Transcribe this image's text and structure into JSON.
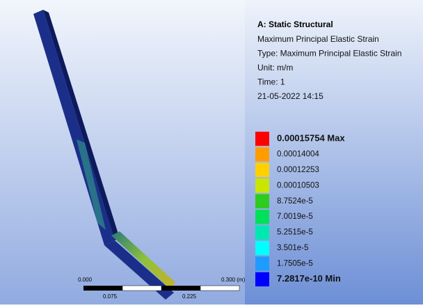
{
  "header": {
    "title": "A: Static Structural",
    "lines": [
      "Maximum Principal Elastic Strain",
      "Type: Maximum Principal Elastic Strain",
      "Unit: m/m",
      "Time: 1",
      "21-05-2022 14:15"
    ]
  },
  "legend": {
    "entries": [
      {
        "label": "0.00015754 Max",
        "color": "#ff0000"
      },
      {
        "label": "0.00014004",
        "color": "#ff9d00"
      },
      {
        "label": "0.00012253",
        "color": "#ffd000"
      },
      {
        "label": "0.00010503",
        "color": "#c8e600"
      },
      {
        "label": "8.7524e-5",
        "color": "#2ecc1e"
      },
      {
        "label": "7.0019e-5",
        "color": "#00e05a"
      },
      {
        "label": "5.2515e-5",
        "color": "#00e8b0"
      },
      {
        "label": "3.501e-5",
        "color": "#00ffff"
      },
      {
        "label": "1.7505e-5",
        "color": "#1e9bff"
      },
      {
        "label": "7.2817e-10 Min",
        "color": "#0000ff"
      }
    ]
  },
  "scale_bar": {
    "top_labels": [
      "0.000",
      "0.300 (m)"
    ],
    "bottom_labels": [
      "0.075",
      "0.225"
    ]
  }
}
